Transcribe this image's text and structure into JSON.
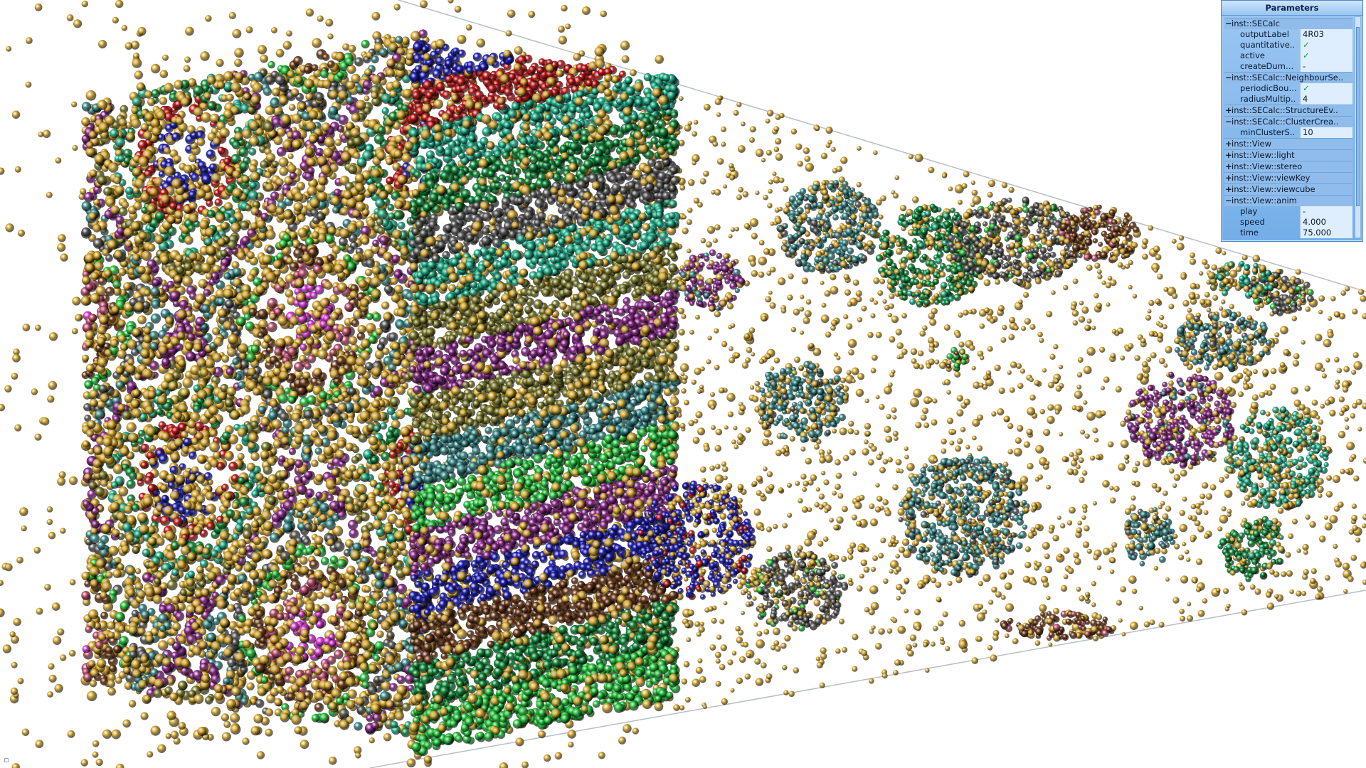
{
  "panel": {
    "title": "Parameters",
    "rows": [
      {
        "type": "group",
        "toggle": "−",
        "label": "inst::SECalc"
      },
      {
        "type": "param",
        "label": "outputLabel",
        "value": "4R03"
      },
      {
        "type": "param",
        "label": "quantitative..",
        "value": "✓",
        "check": true
      },
      {
        "type": "param",
        "label": "active",
        "value": "✓",
        "check": true
      },
      {
        "type": "param",
        "label": "createDumm..",
        "value": "-"
      },
      {
        "type": "group",
        "toggle": "−",
        "label": "inst::SECalc::NeighbourSe.."
      },
      {
        "type": "param",
        "label": "periodicBoun..",
        "value": "✓",
        "check": true
      },
      {
        "type": "param",
        "label": "radiusMultip..",
        "value": "4"
      },
      {
        "type": "group",
        "toggle": "+",
        "label": "inst::SECalc::StructureEv.."
      },
      {
        "type": "group",
        "toggle": "−",
        "label": "inst::SECalc::ClusterCrea.."
      },
      {
        "type": "param",
        "label": "minClusterS..",
        "value": "10"
      },
      {
        "type": "group",
        "toggle": "+",
        "label": "inst::View"
      },
      {
        "type": "group",
        "toggle": "+",
        "label": "inst::View::light"
      },
      {
        "type": "group",
        "toggle": "+",
        "label": "inst::View::stereo"
      },
      {
        "type": "group",
        "toggle": "+",
        "label": "inst::View::viewKey"
      },
      {
        "type": "group",
        "toggle": "+",
        "label": "inst::View::viewcube"
      },
      {
        "type": "group",
        "toggle": "−",
        "label": "inst::View::anim"
      },
      {
        "type": "param",
        "label": "play",
        "value": "-"
      },
      {
        "type": "param",
        "label": "speed",
        "value": "4.000"
      },
      {
        "type": "param",
        "label": "time",
        "value": "75.000"
      }
    ]
  },
  "scene": {
    "atom_color": "#d9a92e",
    "cluster_palette": [
      "#1d1db4",
      "#c01818",
      "#0f8a3a",
      "#1fb08a",
      "#7a7a2c",
      "#8a2a8a",
      "#3a8a8a",
      "#5a5a5a",
      "#23c23c",
      "#6b3a1a",
      "#b84a6a",
      "#d838d8"
    ]
  },
  "icons": {
    "corner": "viewcube-icon"
  }
}
